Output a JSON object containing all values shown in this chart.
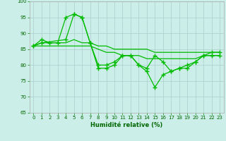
{
  "xlabel": "Humidité relative (%)",
  "background_color": "#cceee8",
  "grid_color": "#aacccc",
  "line_color": "#00bb00",
  "xlim": [
    -0.5,
    23.5
  ],
  "ylim": [
    65,
    100
  ],
  "yticks": [
    65,
    70,
    75,
    80,
    85,
    90,
    95,
    100
  ],
  "xticks": [
    0,
    1,
    2,
    3,
    4,
    5,
    6,
    7,
    8,
    9,
    10,
    11,
    12,
    13,
    14,
    15,
    16,
    17,
    18,
    19,
    20,
    21,
    22,
    23
  ],
  "lines": [
    {
      "x": [
        0,
        1,
        2,
        3,
        4,
        5,
        6,
        7,
        8,
        9,
        10,
        11,
        12,
        13,
        14,
        15,
        16,
        17,
        18,
        19,
        20,
        21,
        22,
        23
      ],
      "y": [
        86,
        88,
        87,
        87,
        95,
        96,
        95,
        87,
        79,
        79,
        80,
        83,
        83,
        80,
        78,
        73,
        77,
        78,
        79,
        80,
        81,
        83,
        83,
        83
      ],
      "has_markers": true
    },
    {
      "x": [
        0,
        1,
        2,
        3,
        4,
        5,
        6,
        7,
        8,
        9,
        10,
        11,
        12,
        13,
        14,
        15,
        16,
        17,
        18,
        19,
        20,
        21,
        22,
        23
      ],
      "y": [
        86,
        87,
        87,
        87,
        87,
        88,
        87,
        87,
        86,
        86,
        85,
        85,
        85,
        85,
        85,
        84,
        84,
        84,
        84,
        84,
        84,
        84,
        84,
        84
      ],
      "has_markers": false
    },
    {
      "x": [
        0,
        1,
        2,
        3,
        4,
        5,
        6,
        7,
        8,
        9,
        10,
        11,
        12,
        13,
        14,
        15,
        16,
        17,
        18,
        19,
        20,
        21,
        22,
        23
      ],
      "y": [
        86,
        86,
        86,
        86,
        86,
        86,
        86,
        86,
        85,
        84,
        84,
        83,
        83,
        83,
        82,
        82,
        82,
        82,
        82,
        82,
        82,
        83,
        83,
        83
      ],
      "has_markers": false
    },
    {
      "x": [
        0,
        1,
        4,
        5,
        6,
        7,
        8,
        9,
        10,
        11,
        12,
        13,
        14,
        15,
        16,
        17,
        18,
        19,
        20,
        21,
        22,
        23
      ],
      "y": [
        86,
        87,
        88,
        96,
        95,
        87,
        80,
        80,
        81,
        83,
        83,
        80,
        79,
        83,
        81,
        78,
        79,
        79,
        81,
        83,
        84,
        84
      ],
      "has_markers": true
    }
  ]
}
